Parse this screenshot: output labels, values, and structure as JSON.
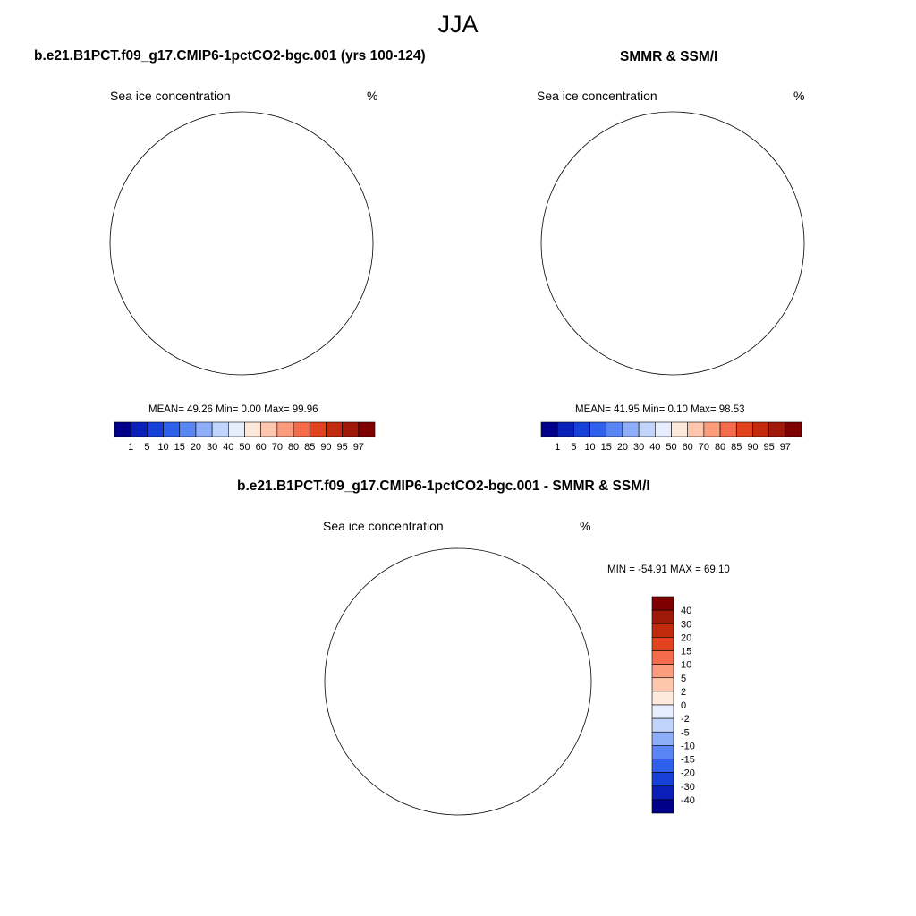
{
  "figure": {
    "title": "JJA"
  },
  "panels": [
    {
      "title": "b.e21.B1PCT.f09_g17.CMIP6-1pctCO2-bgc.001 (yrs 100-124)",
      "left_label": "Sea ice concentration",
      "right_label": "%",
      "stats": "MEAN=  49.26  Min=   0.00  Max=  99.96"
    },
    {
      "title": "SMMR & SSM/I",
      "left_label": "Sea ice concentration",
      "right_label": "%",
      "stats": "MEAN=  41.95  Min=   0.10  Max=  98.53"
    },
    {
      "title": "b.e21.B1PCT.f09_g17.CMIP6-1pctCO2-bgc.001 - SMMR & SSM/I",
      "left_label": "Sea ice concentration",
      "right_label": "%",
      "stats": "MIN = -54.91 MAX =  69.10"
    }
  ],
  "colorbar_concentration": {
    "labels": [
      "1",
      "5",
      "10",
      "15",
      "20",
      "30",
      "40",
      "50",
      "60",
      "70",
      "80",
      "85",
      "90",
      "95",
      "97"
    ],
    "colors": [
      "#00008b",
      "#0a1fb8",
      "#1740d8",
      "#2f60ec",
      "#5a86f5",
      "#8eaefa",
      "#c0d4fc",
      "#e6eefe",
      "#fee9dc",
      "#fdc6ad",
      "#fb9c7c",
      "#f56c4c",
      "#e3421f",
      "#c22a0e",
      "#a01808",
      "#7f0000"
    ]
  },
  "colorbar_difference": {
    "labels": [
      "40",
      "30",
      "20",
      "15",
      "10",
      "5",
      "2",
      "0",
      "-2",
      "-5",
      "-10",
      "-15",
      "-20",
      "-30",
      "-40"
    ],
    "colors": [
      "#7f0000",
      "#a01808",
      "#c22a0e",
      "#e3421f",
      "#f56c4c",
      "#fb9c7c",
      "#fdc6ad",
      "#fee9dc",
      "#e6eefe",
      "#c0d4fc",
      "#8eaefa",
      "#5a86f5",
      "#2f60ec",
      "#1740d8",
      "#0a1fb8",
      "#00008b"
    ]
  }
}
